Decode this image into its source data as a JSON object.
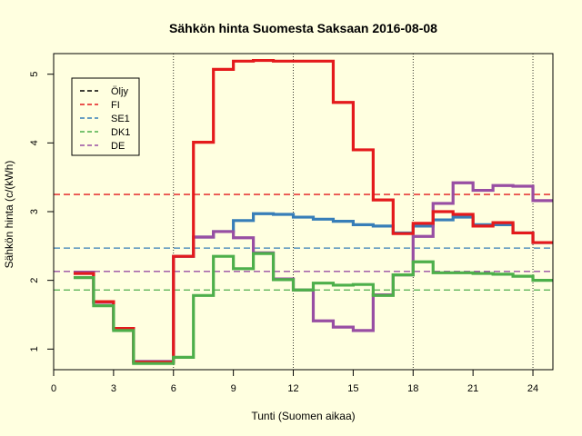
{
  "chart_data": {
    "type": "line",
    "step": true,
    "title": "Sähkön hinta Suomesta Saksaan 2016-08-08",
    "xlabel": "Tunti (Suomen aikaa)",
    "ylabel": "Sähkön hinta (c/(kWh)",
    "xlim": [
      0,
      25
    ],
    "ylim": [
      0.7,
      5.3
    ],
    "xticks": [
      0,
      3,
      6,
      9,
      12,
      15,
      18,
      21,
      24
    ],
    "yticks": [
      1,
      2,
      3,
      4,
      5
    ],
    "vlines": [
      6,
      12,
      18,
      24
    ],
    "legend_position": "top-left",
    "legend": [
      {
        "name": "Öljy",
        "color": "#000000"
      },
      {
        "name": "FI",
        "color": "#E41A1C"
      },
      {
        "name": "SE1",
        "color": "#377EB8"
      },
      {
        "name": "DK1",
        "color": "#4DAF4A"
      },
      {
        "name": "DE",
        "color": "#984EA3"
      }
    ],
    "hlines": [
      {
        "series": "FI",
        "color": "#E41A1C",
        "y": 3.25
      },
      {
        "series": "SE1",
        "color": "#377EB8",
        "y": 2.47
      },
      {
        "series": "DK1",
        "color": "#4DAF4A",
        "y": 1.86
      },
      {
        "series": "DE",
        "color": "#984EA3",
        "y": 2.13
      }
    ],
    "x": [
      1,
      2,
      3,
      4,
      5,
      6,
      7,
      8,
      9,
      10,
      11,
      12,
      13,
      14,
      15,
      16,
      17,
      18,
      19,
      20,
      21,
      22,
      23,
      24,
      25
    ],
    "series": [
      {
        "name": "SE1",
        "color": "#377EB8",
        "values": [
          2.1,
          1.68,
          1.3,
          0.82,
          0.82,
          2.35,
          2.63,
          2.71,
          2.87,
          2.97,
          2.96,
          2.92,
          2.89,
          2.86,
          2.81,
          2.79,
          2.69,
          2.79,
          2.88,
          2.92,
          2.81,
          2.81,
          2.69,
          2.55,
          2.55
        ]
      },
      {
        "name": "DE",
        "color": "#984EA3",
        "values": [
          2.12,
          1.68,
          1.3,
          0.82,
          0.82,
          2.35,
          2.63,
          2.71,
          2.62,
          2.4,
          2.02,
          1.86,
          1.41,
          1.32,
          1.27,
          1.79,
          2.08,
          2.64,
          3.12,
          3.42,
          3.31,
          3.38,
          3.37,
          3.16,
          3.16
        ]
      },
      {
        "name": "FI",
        "color": "#E41A1C",
        "values": [
          2.1,
          1.69,
          1.3,
          0.81,
          0.81,
          2.35,
          4.01,
          5.07,
          5.19,
          5.2,
          5.19,
          5.19,
          5.19,
          4.59,
          3.9,
          3.17,
          2.68,
          2.83,
          3.0,
          2.96,
          2.79,
          2.84,
          2.69,
          2.55,
          2.55
        ]
      },
      {
        "name": "DK1",
        "color": "#4DAF4A",
        "values": [
          2.04,
          1.63,
          1.27,
          0.79,
          0.79,
          0.88,
          1.78,
          2.35,
          2.17,
          2.39,
          2.01,
          1.86,
          1.96,
          1.93,
          1.94,
          1.78,
          2.08,
          2.27,
          2.11,
          2.11,
          2.1,
          2.09,
          2.06,
          2.0,
          2.0
        ]
      }
    ]
  }
}
